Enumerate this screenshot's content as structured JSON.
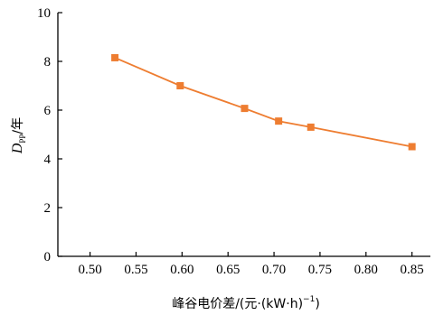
{
  "chart_data": {
    "type": "line",
    "x": [
      0.527,
      0.598,
      0.668,
      0.705,
      0.74,
      0.85
    ],
    "series": [
      {
        "name": "",
        "values": [
          8.15,
          7.0,
          6.07,
          5.55,
          5.3,
          4.5
        ],
        "color": "#EE7D31"
      }
    ],
    "xlim": [
      0.465,
      0.87
    ],
    "ylim": [
      0,
      10
    ],
    "xticks": [
      "0.50",
      "0.55",
      "0.60",
      "0.65",
      "0.70",
      "0.75",
      "0.80",
      "0.85"
    ],
    "xtick_values": [
      0.5,
      0.55,
      0.6,
      0.65,
      0.7,
      0.75,
      0.8,
      0.85
    ],
    "yticks": [
      "0",
      "2",
      "4",
      "6",
      "8",
      "10"
    ],
    "ytick_values": [
      0,
      2,
      4,
      6,
      8,
      10
    ],
    "xlabel": "峰谷电价差/(元·(kW·h)",
    "xlabel_sup": "−1",
    "xlabel_close": ")",
    "ylabel_main": "D",
    "ylabel_sub": "PP",
    "ylabel_unit": "/年",
    "grid": false,
    "marker": "square"
  }
}
